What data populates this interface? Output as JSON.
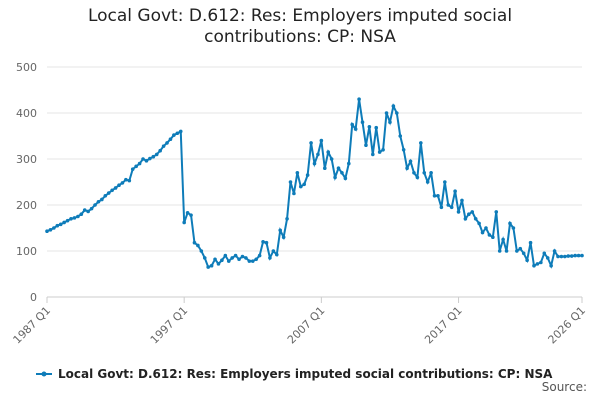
{
  "chart_data": {
    "type": "line",
    "title": "Local Govt: D.612: Res: Employers imputed social contributions: CP: NSA",
    "source": "Source:",
    "x": [
      "1987 Q1",
      "1987 Q2",
      "1987 Q3",
      "1987 Q4",
      "1988 Q1",
      "1988 Q2",
      "1988 Q3",
      "1988 Q4",
      "1989 Q1",
      "1989 Q2",
      "1989 Q3",
      "1989 Q4",
      "1990 Q1",
      "1990 Q2",
      "1990 Q3",
      "1990 Q4",
      "1991 Q1",
      "1991 Q2",
      "1991 Q3",
      "1991 Q4",
      "1992 Q1",
      "1992 Q2",
      "1992 Q3",
      "1992 Q4",
      "1993 Q1",
      "1993 Q2",
      "1993 Q3",
      "1993 Q4",
      "1994 Q1",
      "1994 Q2",
      "1994 Q3",
      "1994 Q4",
      "1995 Q1",
      "1995 Q2",
      "1995 Q3",
      "1995 Q4",
      "1996 Q1",
      "1996 Q2",
      "1996 Q3",
      "1996 Q4",
      "1997 Q1",
      "1997 Q2",
      "1997 Q3",
      "1997 Q4",
      "1998 Q1",
      "1998 Q2",
      "1998 Q3",
      "1998 Q4",
      "1999 Q1",
      "1999 Q2",
      "1999 Q3",
      "1999 Q4",
      "2000 Q1",
      "2000 Q2",
      "2000 Q3",
      "2000 Q4",
      "2001 Q1",
      "2001 Q2",
      "2001 Q3",
      "2001 Q4",
      "2002 Q1",
      "2002 Q2",
      "2002 Q3",
      "2002 Q4",
      "2003 Q1",
      "2003 Q2",
      "2003 Q3",
      "2003 Q4",
      "2004 Q1",
      "2004 Q2",
      "2004 Q3",
      "2004 Q4",
      "2005 Q1",
      "2005 Q2",
      "2005 Q3",
      "2005 Q4",
      "2006 Q1",
      "2006 Q2",
      "2006 Q3",
      "2006 Q4",
      "2007 Q1",
      "2007 Q2",
      "2007 Q3",
      "2007 Q4",
      "2008 Q1",
      "2008 Q2",
      "2008 Q3",
      "2008 Q4",
      "2009 Q1",
      "2009 Q2",
      "2009 Q3",
      "2009 Q4",
      "2010 Q1",
      "2010 Q2",
      "2010 Q3",
      "2010 Q4",
      "2011 Q1",
      "2011 Q2",
      "2011 Q3",
      "2011 Q4",
      "2012 Q1",
      "2012 Q2",
      "2012 Q3",
      "2012 Q4",
      "2013 Q1",
      "2013 Q2",
      "2013 Q3",
      "2013 Q4",
      "2014 Q1",
      "2014 Q2",
      "2014 Q3",
      "2014 Q4",
      "2015 Q1",
      "2015 Q2",
      "2015 Q3",
      "2015 Q4",
      "2016 Q1",
      "2016 Q2",
      "2016 Q3",
      "2016 Q4",
      "2017 Q1",
      "2017 Q2",
      "2017 Q3",
      "2017 Q4",
      "2018 Q1",
      "2018 Q2",
      "2018 Q3",
      "2018 Q4",
      "2019 Q1",
      "2019 Q2",
      "2019 Q3",
      "2019 Q4",
      "2020 Q1",
      "2020 Q2",
      "2020 Q3",
      "2020 Q4",
      "2021 Q1",
      "2021 Q2",
      "2021 Q3",
      "2021 Q4",
      "2022 Q1",
      "2022 Q2",
      "2022 Q3",
      "2022 Q4",
      "2023 Q1",
      "2023 Q2",
      "2023 Q3",
      "2023 Q4",
      "2024 Q1",
      "2024 Q2",
      "2024 Q3",
      "2024 Q4",
      "2025 Q1",
      "2025 Q2",
      "2025 Q3",
      "2025 Q4",
      "2026 Q1"
    ],
    "xticks": [
      "1987 Q1",
      "1997 Q1",
      "2007 Q1",
      "2017 Q1",
      "2026 Q1"
    ],
    "series": [
      {
        "name": "Local Govt: D.612: Res: Employers imputed social contributions: CP: NSA",
        "color": "#0e7cb9",
        "values": [
          143,
          146,
          150,
          155,
          158,
          162,
          166,
          170,
          172,
          175,
          180,
          189,
          186,
          192,
          200,
          207,
          212,
          220,
          226,
          232,
          237,
          243,
          248,
          255,
          253,
          278,
          284,
          290,
          300,
          296,
          301,
          305,
          310,
          318,
          328,
          335,
          343,
          352,
          356,
          360,
          162,
          183,
          178,
          118,
          112,
          100,
          85,
          65,
          68,
          82,
          72,
          80,
          90,
          78,
          85,
          90,
          82,
          88,
          85,
          78,
          78,
          82,
          90,
          120,
          118,
          85,
          100,
          92,
          145,
          130,
          170,
          250,
          225,
          270,
          240,
          245,
          265,
          335,
          290,
          310,
          340,
          280,
          315,
          300,
          260,
          280,
          270,
          258,
          290,
          375,
          365,
          430,
          380,
          330,
          370,
          310,
          368,
          315,
          320,
          400,
          380,
          415,
          400,
          350,
          320,
          280,
          295,
          270,
          260,
          335,
          270,
          250,
          270,
          220,
          220,
          195,
          250,
          200,
          195,
          230,
          185,
          210,
          170,
          180,
          185,
          170,
          160,
          140,
          150,
          135,
          130,
          185,
          100,
          125,
          100,
          160,
          150,
          100,
          105,
          95,
          80,
          118,
          68,
          72,
          75,
          95,
          85,
          68,
          100,
          88,
          88,
          88,
          89,
          89,
          90,
          90,
          90
        ]
      }
    ],
    "ylim": [
      0,
      500
    ],
    "yticks": [
      0,
      100,
      200,
      300,
      400,
      500
    ],
    "grid": true,
    "legend": "bottom"
  }
}
